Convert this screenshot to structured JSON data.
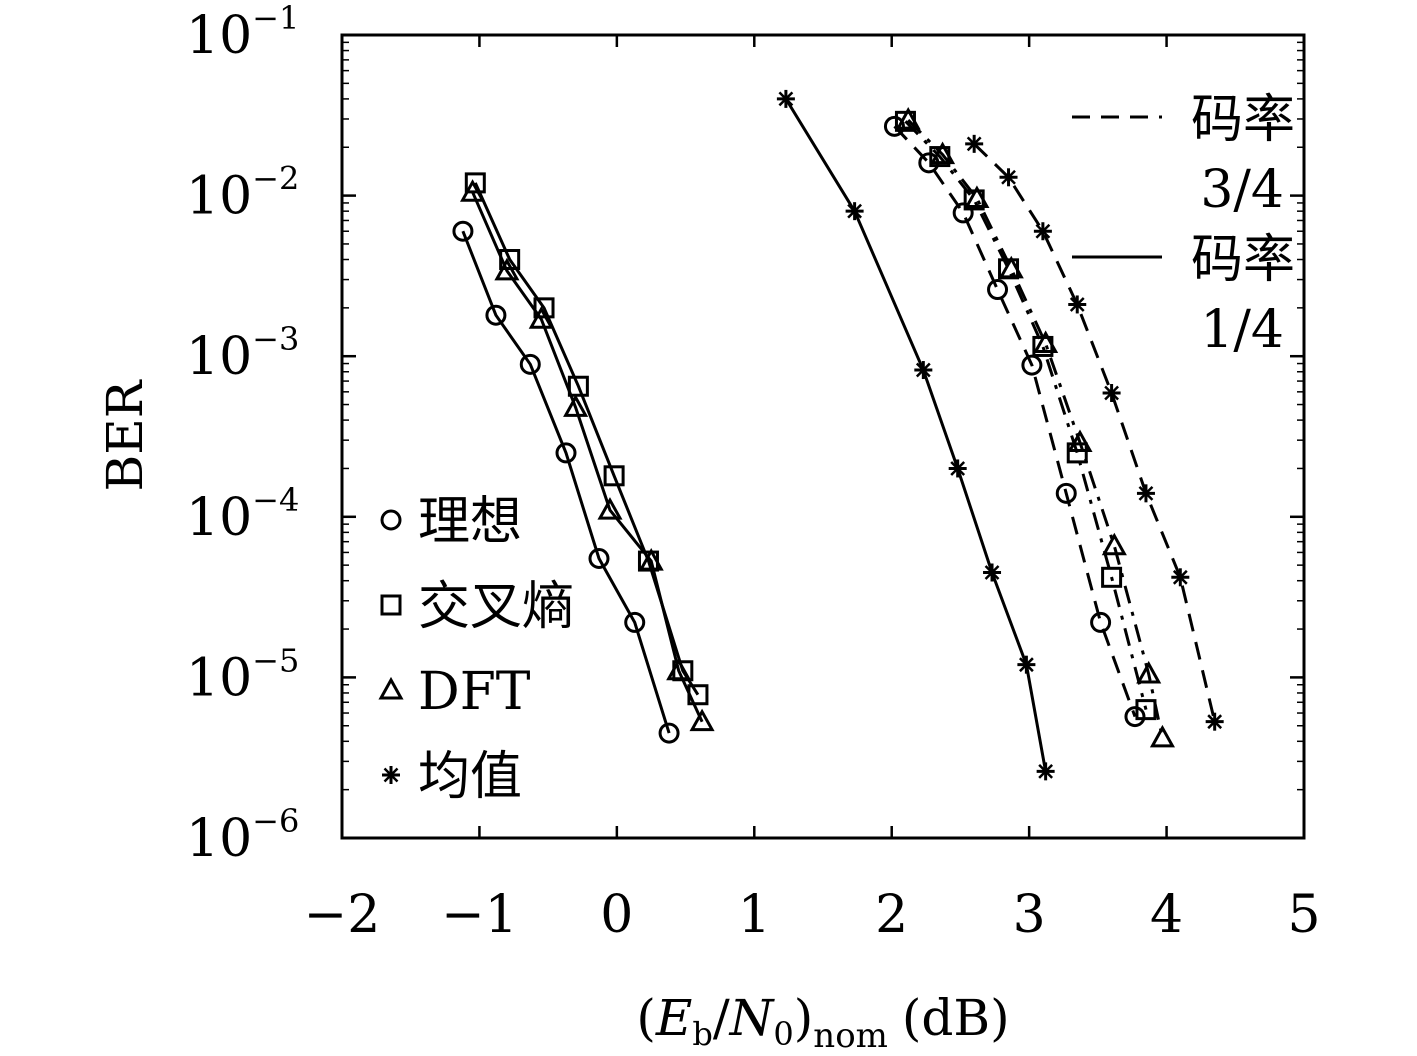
{
  "chart_data": {
    "type": "line",
    "xlabel": {
      "open": "(",
      "E": "E",
      "b": "b",
      "slash": "/",
      "N": "N",
      "zero": "0",
      "close": ")",
      "nom": "nom",
      "unit": "(dB)"
    },
    "ylabel": "BER",
    "xlim": [
      -2,
      5
    ],
    "ylim": [
      1e-06,
      0.1
    ],
    "yscale": "log",
    "xticks": [
      -2,
      -1,
      0,
      1,
      2,
      3,
      4,
      5
    ],
    "xtick_labels": [
      "−2",
      "−1",
      "0",
      "1",
      "2",
      "3",
      "4",
      "5"
    ],
    "yticks": [
      {
        "value": 0.1,
        "base": "10",
        "exp": "−1"
      },
      {
        "value": 0.01,
        "base": "10",
        "exp": "−2"
      },
      {
        "value": 0.001,
        "base": "10",
        "exp": "−3"
      },
      {
        "value": 0.0001,
        "base": "10",
        "exp": "−4"
      },
      {
        "value": 1e-05,
        "base": "10",
        "exp": "−5"
      },
      {
        "value": 1e-06,
        "base": "10",
        "exp": "−6"
      }
    ],
    "grid": false,
    "marker_legend": {
      "placement": "bottom-left",
      "items": [
        {
          "marker": "circle",
          "label": "理想"
        },
        {
          "marker": "square",
          "label": "交叉熵"
        },
        {
          "marker": "triangle",
          "label": "DFT"
        },
        {
          "marker": "star",
          "label": "均值"
        }
      ]
    },
    "line_legend": {
      "placement": "top-right",
      "items": [
        {
          "style": "dashed",
          "label": "码率",
          "sublabel": "3/4"
        },
        {
          "style": "solid",
          "label": "码率",
          "sublabel": "1/4"
        }
      ]
    },
    "series": [
      {
        "method": "理想",
        "rate": "1/4",
        "marker": "circle",
        "style": "solid",
        "x": [
          -1.12,
          -0.88,
          -0.63,
          -0.37,
          -0.13,
          0.13,
          0.38
        ],
        "y": [
          0.006,
          0.0018,
          0.00089,
          0.00025,
          5.5e-05,
          2.2e-05,
          4.5e-06
        ]
      },
      {
        "method": "交叉熵",
        "rate": "1/4",
        "marker": "square",
        "style": "solid",
        "x": [
          -1.03,
          -0.78,
          -0.53,
          -0.28,
          -0.02,
          0.23,
          0.48,
          0.59
        ],
        "y": [
          0.012,
          0.004,
          0.002,
          0.00065,
          0.00018,
          5.3e-05,
          1.1e-05,
          7.8e-06
        ]
      },
      {
        "method": "DFT",
        "rate": "1/4",
        "marker": "triangle",
        "style": "solid",
        "x": [
          -1.05,
          -0.8,
          -0.55,
          -0.3,
          -0.05,
          0.25,
          0.45,
          0.62
        ],
        "y": [
          0.0105,
          0.0034,
          0.0017,
          0.00048,
          0.00011,
          5.3e-05,
          1.1e-05,
          5.3e-06
        ]
      },
      {
        "method": "均值",
        "rate": "1/4",
        "marker": "star",
        "style": "solid",
        "x": [
          1.23,
          1.73,
          2.23,
          2.48,
          2.73,
          2.98,
          3.12
        ],
        "y": [
          0.04,
          0.008,
          0.00082,
          0.0002,
          4.5e-05,
          1.2e-05,
          2.6e-06
        ]
      },
      {
        "method": "理想",
        "rate": "3/4",
        "marker": "circle",
        "style": "dashed",
        "x": [
          2.02,
          2.27,
          2.52,
          2.77,
          3.02,
          3.27,
          3.52,
          3.77
        ],
        "y": [
          0.027,
          0.016,
          0.0078,
          0.0026,
          0.00088,
          0.00014,
          2.2e-05,
          5.7e-06
        ]
      },
      {
        "method": "交叉熵",
        "rate": "3/4",
        "marker": "square",
        "style": "dash-dot",
        "x": [
          2.1,
          2.35,
          2.6,
          2.85,
          3.1,
          3.35,
          3.6,
          3.85
        ],
        "y": [
          0.029,
          0.0175,
          0.0094,
          0.0035,
          0.00115,
          0.00025,
          4.2e-05,
          6.3e-06
        ]
      },
      {
        "method": "DFT",
        "rate": "3/4",
        "marker": "triangle",
        "style": "dash-dot",
        "x": [
          2.12,
          2.37,
          2.62,
          2.87,
          3.12,
          3.37,
          3.62,
          3.87,
          3.97
        ],
        "y": [
          0.0295,
          0.018,
          0.0096,
          0.0035,
          0.0012,
          0.00029,
          6.6e-05,
          1.05e-05,
          4.2e-06
        ]
      },
      {
        "method": "均值",
        "rate": "3/4",
        "marker": "star",
        "style": "dashed",
        "x": [
          2.6,
          2.85,
          3.1,
          3.35,
          3.6,
          3.85,
          4.1,
          4.35
        ],
        "y": [
          0.021,
          0.013,
          0.006,
          0.0021,
          0.00059,
          0.00014,
          4.2e-05,
          5.3e-06
        ]
      }
    ]
  }
}
